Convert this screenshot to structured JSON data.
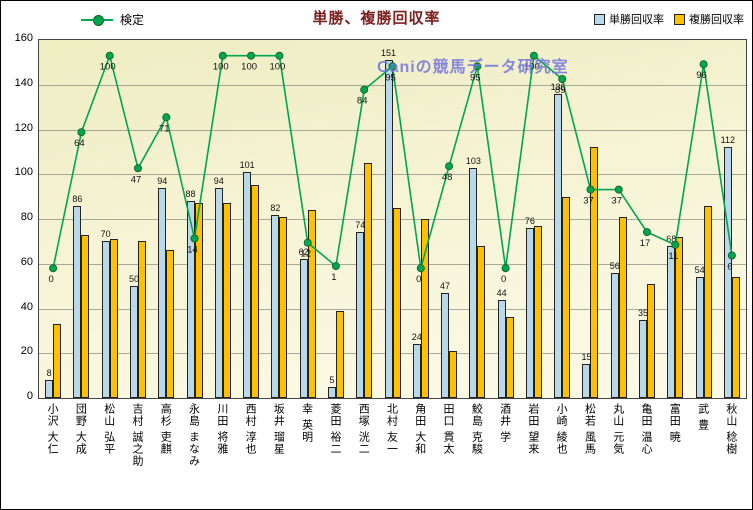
{
  "title": "単勝、複勝回収率",
  "watermark": "Caniの競馬データ研究室",
  "legend": {
    "kentei": "検定",
    "tansho": "単勝回収率",
    "fukusho": "複勝回収率"
  },
  "colors": {
    "title": "#7B1F1F",
    "watermark": "#7575DD",
    "tansho_bar": "#B9D9EA",
    "fukusho_bar": "#FFC000",
    "kentei_line": "#00A551",
    "kentei_dot_edge": "#14591D"
  },
  "y_axis": {
    "min": 0,
    "max": 160,
    "step": 20
  },
  "chart_data": {
    "type": "combo",
    "title": "単勝、複勝回収率",
    "ylim": [
      0,
      160
    ],
    "y_step": 20,
    "grid": true,
    "legend_position": "top",
    "categories": [
      "小沢 大仁",
      "団野 大成",
      "松山 弘平",
      "吉村 誠之助",
      "高杉 吏麒",
      "永島 まなみ",
      "川田 将雅",
      "西村 淳也",
      "坂井 瑠星",
      "幸 英明",
      "菱田 裕二",
      "西塚 洸二",
      "北村 友一",
      "角田 大和",
      "田口 貫太",
      "鮫島 克駿",
      "酒井 学",
      "岩田 望来",
      "小崎 綾也",
      "松若 風馬",
      "丸山 元気",
      "亀田 温心",
      "富田 暁",
      "武 豊",
      "秋山 稔樹"
    ],
    "series": [
      {
        "name": "単勝回収率",
        "type": "bar",
        "color": "#B9D9EA",
        "values": [
          8,
          86,
          70,
          50,
          94,
          88,
          94,
          101,
          82,
          62,
          5,
          74,
          151,
          24,
          47,
          103,
          44,
          76,
          136,
          15,
          56,
          35,
          68,
          54,
          112
        ]
      },
      {
        "name": "複勝回収率",
        "type": "bar",
        "color": "#FFC000",
        "values": [
          33,
          73,
          71,
          70,
          66,
          87,
          87,
          95,
          81,
          84,
          39,
          105,
          85,
          80,
          21,
          68,
          36,
          77,
          90,
          112,
          81,
          51,
          72,
          86,
          54
        ]
      },
      {
        "name": "検定",
        "type": "line",
        "color": "#00A551",
        "values": [
          0,
          64,
          100,
          47,
          71,
          14,
          100,
          100,
          100,
          12,
          1,
          84,
          95,
          0,
          48,
          95,
          0,
          100,
          89,
          37,
          37,
          17,
          11,
          96,
          6
        ]
      }
    ]
  }
}
